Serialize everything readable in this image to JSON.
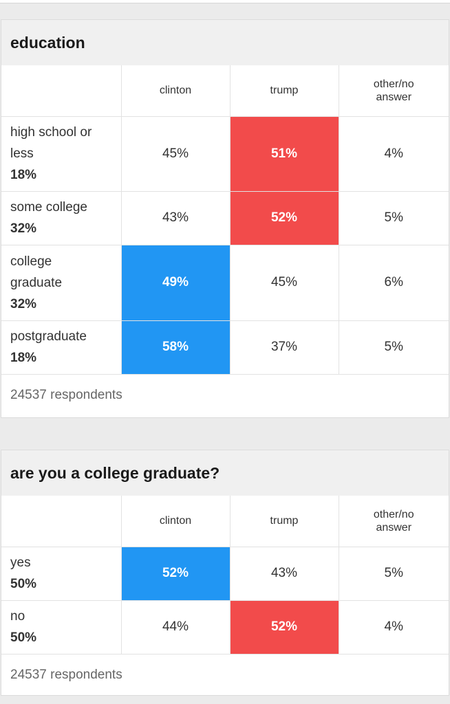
{
  "columns": [
    "clinton",
    "trump",
    "other/no answer"
  ],
  "colors": {
    "clinton": "#2196f3",
    "trump": "#f24b4b"
  },
  "tables": [
    {
      "title": "education",
      "rows": [
        {
          "label": "high school or less",
          "share": "18%",
          "values": [
            "45%",
            "51%",
            "4%"
          ],
          "highlight": "trump"
        },
        {
          "label": "some college",
          "share": "32%",
          "values": [
            "43%",
            "52%",
            "5%"
          ],
          "highlight": "trump"
        },
        {
          "label": "college graduate",
          "share": "32%",
          "values": [
            "49%",
            "45%",
            "6%"
          ],
          "highlight": "clinton"
        },
        {
          "label": "postgraduate",
          "share": "18%",
          "values": [
            "58%",
            "37%",
            "5%"
          ],
          "highlight": "clinton"
        }
      ],
      "footer": "24537 respondents"
    },
    {
      "title": "are you a college graduate?",
      "rows": [
        {
          "label": "yes",
          "share": "50%",
          "values": [
            "52%",
            "43%",
            "5%"
          ],
          "highlight": "clinton"
        },
        {
          "label": "no",
          "share": "50%",
          "values": [
            "44%",
            "52%",
            "4%"
          ],
          "highlight": "trump"
        }
      ],
      "footer": "24537 respondents"
    }
  ]
}
